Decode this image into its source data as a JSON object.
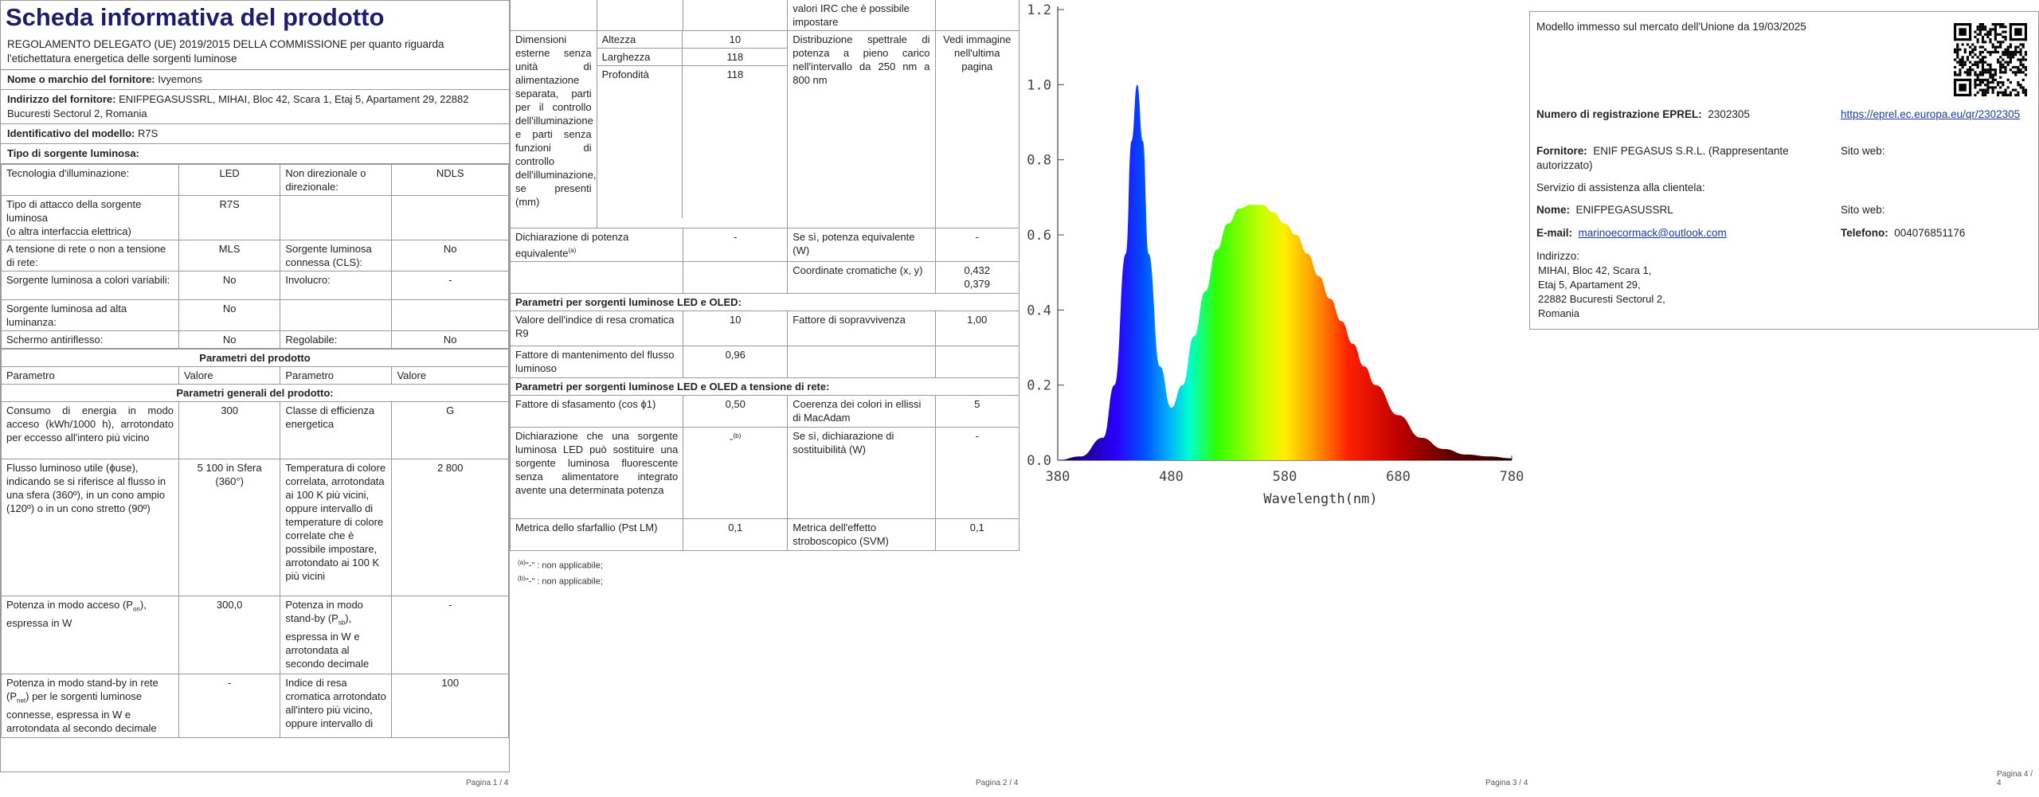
{
  "page1": {
    "title": "Scheda informativa del prodotto",
    "regulation": "REGOLAMENTO DELEGATO (UE) 2019/2015 DELLA COMMISSIONE per quanto riguarda l'etichettatura energetica delle sorgenti luminose",
    "supplier_label": "Nome o marchio del fornitore:",
    "supplier_value": "Ivyemons",
    "address_label": "Indirizzo del fornitore:",
    "address_value": "ENIFPEGASUSSRL, MIHAI, Bloc 42, Scara 1, Etaj 5, Apartament 29, 22882 Bucuresti Sectorul 2, Romania",
    "model_label": "Identificativo del modello:",
    "model_value": "R7S",
    "source_type_label": "Tipo di sorgente luminosa:",
    "rows": [
      [
        "Tecnologia d'illuminazione:",
        "LED",
        "Non direzionale o direzionale:",
        "NDLS"
      ],
      [
        "Tipo di attacco della sorgente luminosa\n(o altra interfaccia elettrica)",
        "R7S",
        "",
        ""
      ],
      [
        "A tensione di rete o non a tensione di rete:",
        "MLS",
        "Sorgente luminosa connessa (CLS):",
        "No"
      ],
      [
        "Sorgente luminosa a colori variabili:",
        "No",
        "Involucro:",
        "-"
      ],
      [
        "Sorgente luminosa ad alta luminanza:",
        "No",
        "",
        ""
      ],
      [
        "Schermo antiriflesso:",
        "No",
        "Regolabile:",
        "No"
      ]
    ],
    "params_header": "Parametri del prodotto",
    "col_headers": [
      "Parametro",
      "Valore",
      "Parametro",
      "Valore"
    ],
    "general_header": "Parametri generali del prodotto:",
    "general_rows": [
      [
        "Consumo di energia in modo acceso (kWh/1000 h), arrotondato per eccesso all'intero più vicino",
        "300",
        "Classe di efficienza energetica",
        "G"
      ],
      [
        "Flusso luminoso utile (ϕuse), indicando se si riferisce al flusso in una sfera (360º), in un cono ampio (120º) o in un cono stretto (90º)",
        "5 100 in Sfera (360°)",
        "Temperatura di colore correlata, arrotondata ai 100 K più vicini, oppure intervallo di temperature di colore correlate che è possibile impostare, arrotondato ai 100 K più vicini",
        "2 800"
      ]
    ],
    "power_on_a": "Potenza in modo acceso (P",
    "power_on_sub": "on",
    "power_on_b": "), espressa in W",
    "power_on_value": "300,0",
    "standby_a": "Potenza in modo stand-by (P",
    "standby_sub": "sb",
    "standby_b": "), espressa in W e arrotondata al secondo decimale",
    "standby_value": "-",
    "netstandby_a": "Potenza in modo stand-by in rete (P",
    "netstandby_sub": "net",
    "netstandby_b": ") per le sorgenti luminose connesse, espressa in W e arrotondata al secondo decimale",
    "netstandby_value": "-",
    "cri_label": "Indice di resa cromatica arrotondato all'intero più vicino, oppure intervallo di",
    "cri_value": "100",
    "page_num": "Pagina 1 / 4"
  },
  "page2": {
    "cri_cont": "valori IRC che è possibile impostare",
    "dim_label": "Dimensioni esterne senza unità di alimentazione separata, parti per il controllo dell'illuminazione e parti senza funzioni di controllo dell'illuminazione, se presenti (mm)",
    "dims": [
      [
        "Altezza",
        "10"
      ],
      [
        "Larghezza",
        "118"
      ],
      [
        "Profondità",
        "118"
      ]
    ],
    "spectral_label": "Distribuzione spettrale di potenza a pieno carico nell'intervallo da 250 nm a 800 nm",
    "spectral_value": "Vedi immagine nell'ultima pagina",
    "equiv_label": "Dichiarazione di potenza equivalente",
    "equiv_sup": "(a)",
    "equiv_value": "-",
    "equiv_power_label": "Se sì, potenza equivalente (W)",
    "equiv_power_value": "-",
    "chroma_label": "Coordinate cromatiche (x, y)",
    "chroma_x": "0,432",
    "chroma_y": "0,379",
    "led_header": "Parametri per sorgenti luminose LED e OLED:",
    "r9_label": "Valore dell'indice di resa cromatica R9",
    "r9_value": "10",
    "survival_label": "Fattore di sopravvivenza",
    "survival_value": "1,00",
    "maint_label": "Fattore di mantenimento del flusso luminoso",
    "maint_value": "0,96",
    "mains_header": "Parametri per sorgenti luminose LED e OLED a tensione di rete:",
    "cosphi_label": "Fattore di sfasamento (cos ϕ1)",
    "cosphi_value": "0,50",
    "macadam_label": "Coerenza dei colori in ellissi di MacAdam",
    "macadam_value": "5",
    "cfl_label": "Dichiarazione che una sorgente luminosa LED può sostituire una sorgente luminosa fluorescente senza alimentatore integrato avente una determinata potenza",
    "cfl_value": "-",
    "cfl_sup": "(b)",
    "replace_label": "Se sì, dichiarazione di sostituibilità (W)",
    "replace_value": "-",
    "flicker_label": "Metrica dello sfarfallio (Pst LM)",
    "flicker_value": "0,1",
    "svm_label": "Metrica dell'effetto stroboscopico (SVM)",
    "svm_value": "0,1",
    "note_a_sup": "(a)",
    "note_a": "\"-\" : non applicabile;",
    "note_b_sup": "(b)",
    "note_b": "\"-\" : non applicabile;",
    "page_num": "Pagina 2 / 4"
  },
  "page3": {
    "page_num": "Pagina 3 / 4"
  },
  "chart_data": {
    "type": "area",
    "xlabel": "Wavelength(nm)",
    "ylabel": "",
    "xlim": [
      380,
      780
    ],
    "ylim": [
      0,
      1.2
    ],
    "xticks": [
      "380",
      "480",
      "580",
      "680",
      "780"
    ],
    "yticks": [
      "0.0",
      "0.2",
      "0.4",
      "0.6",
      "0.8",
      "1.0",
      "1.2"
    ],
    "grid": false,
    "x": [
      380,
      400,
      420,
      430,
      440,
      445,
      450,
      455,
      460,
      470,
      480,
      490,
      500,
      510,
      520,
      530,
      540,
      550,
      560,
      570,
      580,
      590,
      600,
      610,
      620,
      630,
      640,
      650,
      660,
      680,
      700,
      720,
      740,
      760,
      780
    ],
    "values": [
      0.0,
      0.01,
      0.06,
      0.2,
      0.55,
      0.85,
      1.0,
      0.85,
      0.55,
      0.25,
      0.14,
      0.2,
      0.33,
      0.45,
      0.56,
      0.63,
      0.67,
      0.68,
      0.68,
      0.66,
      0.63,
      0.6,
      0.55,
      0.49,
      0.43,
      0.37,
      0.31,
      0.25,
      0.2,
      0.12,
      0.06,
      0.03,
      0.015,
      0.01,
      0.005
    ]
  },
  "page4": {
    "market_text": "Modello immesso sul mercato dell'Unione da 19/03/2025",
    "eprel_label": "Numero di registrazione EPREL:",
    "eprel_value": "2302305",
    "eprel_link": "https://eprel.ec.europa.eu/qr/2302305",
    "supplier_label": "Fornitore:",
    "supplier_value": "ENIF PEGASUS S.R.L. (Rappresentante autorizzato)",
    "website_label": "Sito web:",
    "support_label": "Servizio di assistenza alla clientela:",
    "name_label": "Nome:",
    "name_value": "ENIFPEGASUSSRL",
    "website2_label": "Sito web:",
    "email_label": "E-mail:",
    "email_value": "marinoecormack@outlook.com",
    "phone_label": "Telefono:",
    "phone_value": "004076851176",
    "addr_label": "Indirizzo:",
    "addr_lines": [
      "MIHAI, Bloc 42, Scara 1,",
      "Etaj 5, Apartament 29,",
      "22882 Bucuresti Sectorul 2,",
      "Romania"
    ],
    "page_num": "Pagina 4 / 4"
  }
}
